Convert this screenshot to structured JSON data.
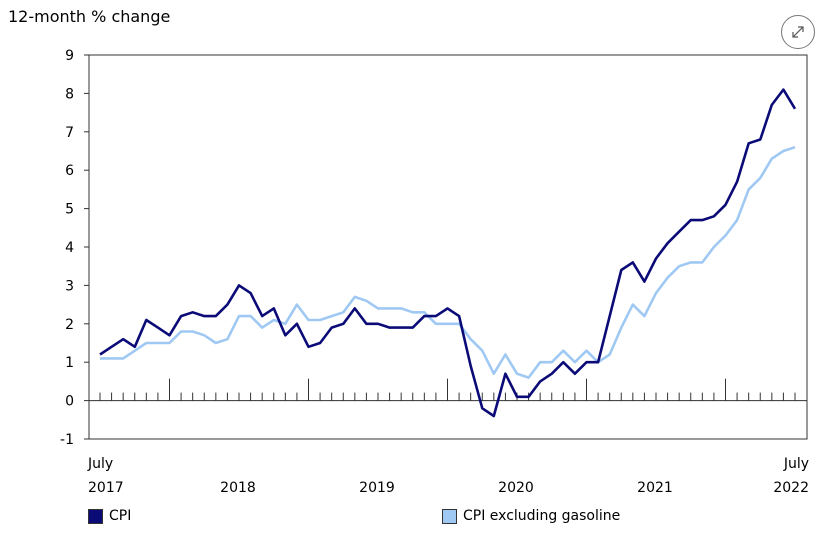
{
  "chart_data": {
    "type": "line",
    "ylabel": "12-month % change",
    "ylim": [
      -1,
      9
    ],
    "yticks": [
      9,
      8,
      7,
      6,
      5,
      4,
      3,
      2,
      1,
      0,
      -1
    ],
    "x_start": "July 2017",
    "x_end": "July 2022",
    "x_labels": [
      {
        "text": "July",
        "text2": "2017",
        "align": "left"
      },
      {
        "text": "",
        "text2": "2018",
        "align": "center"
      },
      {
        "text": "",
        "text2": "2019",
        "align": "center"
      },
      {
        "text": "",
        "text2": "2020",
        "align": "center"
      },
      {
        "text": "",
        "text2": "2021",
        "align": "center"
      },
      {
        "text": "July",
        "text2": "2022",
        "align": "right"
      }
    ],
    "grid": false,
    "legend_position": "bottom",
    "series": [
      {
        "name": "CPI",
        "color": "#0b0b78",
        "values": [
          1.2,
          1.4,
          1.6,
          1.4,
          2.1,
          1.9,
          1.7,
          2.2,
          2.3,
          2.2,
          2.2,
          2.5,
          3.0,
          2.8,
          2.2,
          2.4,
          1.7,
          2.0,
          1.4,
          1.5,
          1.9,
          2.0,
          2.4,
          2.0,
          2.0,
          1.9,
          1.9,
          1.9,
          2.2,
          2.2,
          2.4,
          2.2,
          0.9,
          -0.2,
          -0.4,
          0.7,
          0.1,
          0.1,
          0.5,
          0.7,
          1.0,
          0.7,
          1.0,
          1.0,
          2.2,
          3.4,
          3.6,
          3.1,
          3.7,
          4.1,
          4.4,
          4.7,
          4.7,
          4.8,
          5.1,
          5.7,
          6.7,
          6.8,
          7.7,
          8.1,
          7.6
        ]
      },
      {
        "name": "CPI excluding gasoline",
        "color": "#9fc9f3",
        "values": [
          1.1,
          1.1,
          1.1,
          1.3,
          1.5,
          1.5,
          1.5,
          1.8,
          1.8,
          1.7,
          1.5,
          1.6,
          2.2,
          2.2,
          1.9,
          2.1,
          2.0,
          2.5,
          2.1,
          2.1,
          2.2,
          2.3,
          2.7,
          2.6,
          2.4,
          2.4,
          2.4,
          2.3,
          2.3,
          2.0,
          2.0,
          2.0,
          1.6,
          1.3,
          0.7,
          1.2,
          0.7,
          0.6,
          1.0,
          1.0,
          1.3,
          1.0,
          1.3,
          1.0,
          1.2,
          1.9,
          2.5,
          2.2,
          2.8,
          3.2,
          3.5,
          3.6,
          3.6,
          4.0,
          4.3,
          4.7,
          5.5,
          5.8,
          6.3,
          6.5,
          6.6
        ]
      }
    ]
  }
}
